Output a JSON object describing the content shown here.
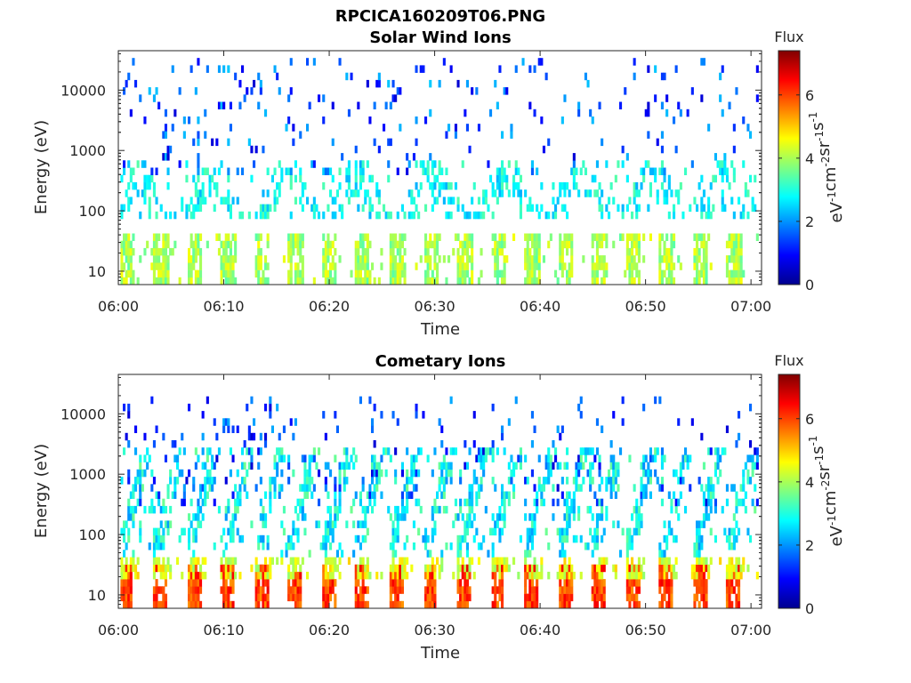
{
  "figure": {
    "title": "RPCICA160209T06.PNG"
  },
  "chart_data": [
    {
      "type": "heatmap",
      "title": "Solar Wind Ions",
      "xlabel": "Time",
      "ylabel": "Energy (eV)",
      "x_ticks": [
        "06:00",
        "06:10",
        "06:20",
        "06:30",
        "06:40",
        "06:50",
        "07:00"
      ],
      "x_range_minutes": [
        0,
        61
      ],
      "y_scale": "log",
      "y_ticks": [
        {
          "value": 10,
          "label": "10"
        },
        {
          "value": 100,
          "label": "100"
        },
        {
          "value": 1000,
          "label": "1000"
        },
        {
          "value": 10000,
          "label": "10000"
        }
      ],
      "y_range": [
        6,
        45000
      ],
      "colorbar": {
        "title": "Flux",
        "label": "eV-1cm-2sr-1s-1",
        "range": [
          0,
          7.4
        ],
        "ticks": [
          "0",
          "2",
          "4",
          "6"
        ]
      },
      "pulse_period_minutes": 3.2,
      "bands": [
        {
          "name": "low-energy pulses",
          "e_range": [
            6,
            40
          ],
          "value_range": [
            3.4,
            4.6
          ]
        },
        {
          "name": "mid-energy patches",
          "e_range": [
            80,
            600
          ],
          "value_range": [
            2.2,
            3.4
          ]
        },
        {
          "name": "high-energy noise",
          "e_range": [
            400,
            30000
          ],
          "value_range": [
            0.6,
            2.4
          ]
        }
      ]
    },
    {
      "type": "heatmap",
      "title": "Cometary Ions",
      "xlabel": "Time",
      "ylabel": "Energy (eV)",
      "x_ticks": [
        "06:00",
        "06:10",
        "06:20",
        "06:30",
        "06:40",
        "06:50",
        "07:00"
      ],
      "x_range_minutes": [
        0,
        61
      ],
      "y_scale": "log",
      "y_ticks": [
        {
          "value": 10,
          "label": "10"
        },
        {
          "value": 100,
          "label": "100"
        },
        {
          "value": 1000,
          "label": "1000"
        },
        {
          "value": 10000,
          "label": "10000"
        }
      ],
      "y_range": [
        6,
        45000
      ],
      "colorbar": {
        "title": "Flux",
        "label": "eV-1cm-2sr-1s-1",
        "range": [
          0,
          7.4
        ],
        "ticks": [
          "0",
          "2",
          "4",
          "6"
        ]
      },
      "pulse_period_minutes": 3.2,
      "bands": [
        {
          "name": "pulse cores",
          "e_range": [
            6,
            28
          ],
          "value_range": [
            5.4,
            6.6
          ]
        },
        {
          "name": "pulse halos",
          "e_range": [
            20,
            45
          ],
          "value_range": [
            3.8,
            5.0
          ]
        },
        {
          "name": "dispersed tails",
          "e_range": [
            40,
            3000
          ],
          "value_range": [
            2.0,
            3.6
          ]
        },
        {
          "name": "high-energy noise",
          "e_range": [
            300,
            20000
          ],
          "value_range": [
            0.6,
            2.2
          ]
        }
      ]
    }
  ]
}
